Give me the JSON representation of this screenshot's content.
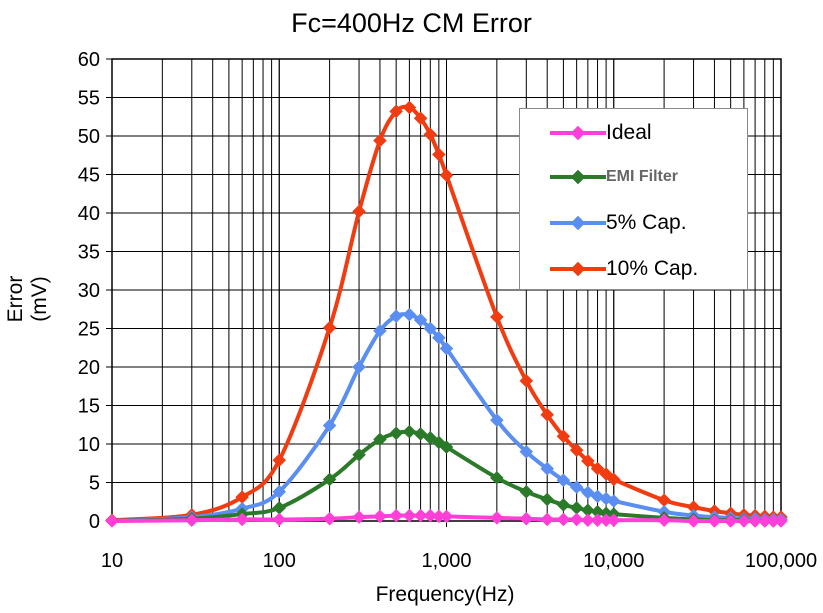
{
  "chart_data": {
    "type": "line",
    "title": "Fc=400Hz CM Error",
    "xlabel": "Frequency(Hz)",
    "ylabel": "Error (mV)",
    "xscale": "log",
    "xlim": [
      10,
      100000
    ],
    "ylim": [
      0,
      60
    ],
    "xticks": [
      "10",
      "100",
      "1,000",
      "10,000",
      "100,000"
    ],
    "yticks": [
      "0",
      "5",
      "10",
      "15",
      "20",
      "25",
      "30",
      "35",
      "40",
      "45",
      "50",
      "55",
      "60"
    ],
    "grid": true,
    "legend_position": "top-right",
    "series": [
      {
        "name": "Ideal",
        "color": "#ff3fd8",
        "points": [
          [
            10,
            0.0
          ],
          [
            30,
            0.1
          ],
          [
            60,
            0.2
          ],
          [
            100,
            0.2
          ],
          [
            200,
            0.3
          ],
          [
            300,
            0.5
          ],
          [
            400,
            0.6
          ],
          [
            500,
            0.7
          ],
          [
            600,
            0.7
          ],
          [
            700,
            0.7
          ],
          [
            800,
            0.7
          ],
          [
            900,
            0.6
          ],
          [
            1000,
            0.6
          ],
          [
            2000,
            0.4
          ],
          [
            3000,
            0.3
          ],
          [
            4000,
            0.2
          ],
          [
            5000,
            0.2
          ],
          [
            6000,
            0.2
          ],
          [
            7000,
            0.1
          ],
          [
            8000,
            0.1
          ],
          [
            9000,
            0.1
          ],
          [
            10000,
            0.1
          ],
          [
            20000,
            0.1
          ],
          [
            30000,
            0.0
          ],
          [
            40000,
            0.0
          ],
          [
            50000,
            0.0
          ],
          [
            60000,
            0.0
          ],
          [
            70000,
            0.0
          ],
          [
            80000,
            0.0
          ],
          [
            90000,
            0.0
          ],
          [
            100000,
            0.0
          ]
        ]
      },
      {
        "name": "EMI Filter",
        "color": "#2a7a2a",
        "points": [
          [
            10,
            0.0
          ],
          [
            30,
            0.3
          ],
          [
            60,
            0.9
          ],
          [
            100,
            1.7
          ],
          [
            200,
            5.4
          ],
          [
            300,
            8.6
          ],
          [
            400,
            10.6
          ],
          [
            500,
            11.4
          ],
          [
            600,
            11.6
          ],
          [
            700,
            11.3
          ],
          [
            800,
            10.8
          ],
          [
            900,
            10.2
          ],
          [
            1000,
            9.6
          ],
          [
            2000,
            5.6
          ],
          [
            3000,
            3.8
          ],
          [
            4000,
            2.8
          ],
          [
            5000,
            2.1
          ],
          [
            6000,
            1.7
          ],
          [
            7000,
            1.4
          ],
          [
            8000,
            1.2
          ],
          [
            9000,
            1.0
          ],
          [
            10000,
            0.9
          ],
          [
            20000,
            0.4
          ],
          [
            30000,
            0.2
          ],
          [
            40000,
            0.1
          ],
          [
            50000,
            0.1
          ],
          [
            60000,
            0.1
          ],
          [
            70000,
            0.0
          ],
          [
            80000,
            0.0
          ],
          [
            90000,
            0.0
          ],
          [
            100000,
            0.0
          ]
        ]
      },
      {
        "name": "5% Cap.",
        "color": "#5a8ef0",
        "points": [
          [
            10,
            0.0
          ],
          [
            30,
            0.5
          ],
          [
            60,
            1.6
          ],
          [
            100,
            3.8
          ],
          [
            200,
            12.4
          ],
          [
            300,
            20.0
          ],
          [
            400,
            24.7
          ],
          [
            500,
            26.6
          ],
          [
            600,
            26.8
          ],
          [
            700,
            26.1
          ],
          [
            800,
            25.0
          ],
          [
            900,
            23.8
          ],
          [
            1000,
            22.4
          ],
          [
            2000,
            13.1
          ],
          [
            3000,
            9.0
          ],
          [
            4000,
            6.8
          ],
          [
            5000,
            5.3
          ],
          [
            6000,
            4.4
          ],
          [
            7000,
            3.7
          ],
          [
            8000,
            3.2
          ],
          [
            9000,
            2.9
          ],
          [
            10000,
            2.6
          ],
          [
            20000,
            1.2
          ],
          [
            30000,
            0.7
          ],
          [
            40000,
            0.5
          ],
          [
            50000,
            0.4
          ],
          [
            60000,
            0.3
          ],
          [
            70000,
            0.3
          ],
          [
            80000,
            0.2
          ],
          [
            90000,
            0.2
          ],
          [
            100000,
            0.2
          ]
        ]
      },
      {
        "name": "10% Cap.",
        "color": "#f03c10",
        "points": [
          [
            10,
            0.1
          ],
          [
            30,
            0.8
          ],
          [
            60,
            3.1
          ],
          [
            100,
            7.9
          ],
          [
            200,
            25.1
          ],
          [
            300,
            40.2
          ],
          [
            400,
            49.4
          ],
          [
            500,
            53.2
          ],
          [
            600,
            53.7
          ],
          [
            700,
            52.3
          ],
          [
            800,
            50.2
          ],
          [
            900,
            47.6
          ],
          [
            1000,
            44.9
          ],
          [
            2000,
            26.5
          ],
          [
            3000,
            18.2
          ],
          [
            4000,
            13.8
          ],
          [
            5000,
            11.0
          ],
          [
            6000,
            9.2
          ],
          [
            7000,
            7.8
          ],
          [
            8000,
            6.8
          ],
          [
            9000,
            6.1
          ],
          [
            10000,
            5.4
          ],
          [
            20000,
            2.7
          ],
          [
            30000,
            1.8
          ],
          [
            40000,
            1.3
          ],
          [
            50000,
            1.0
          ],
          [
            60000,
            0.8
          ],
          [
            70000,
            0.7
          ],
          [
            80000,
            0.6
          ],
          [
            90000,
            0.5
          ],
          [
            100000,
            0.5
          ]
        ]
      }
    ]
  }
}
